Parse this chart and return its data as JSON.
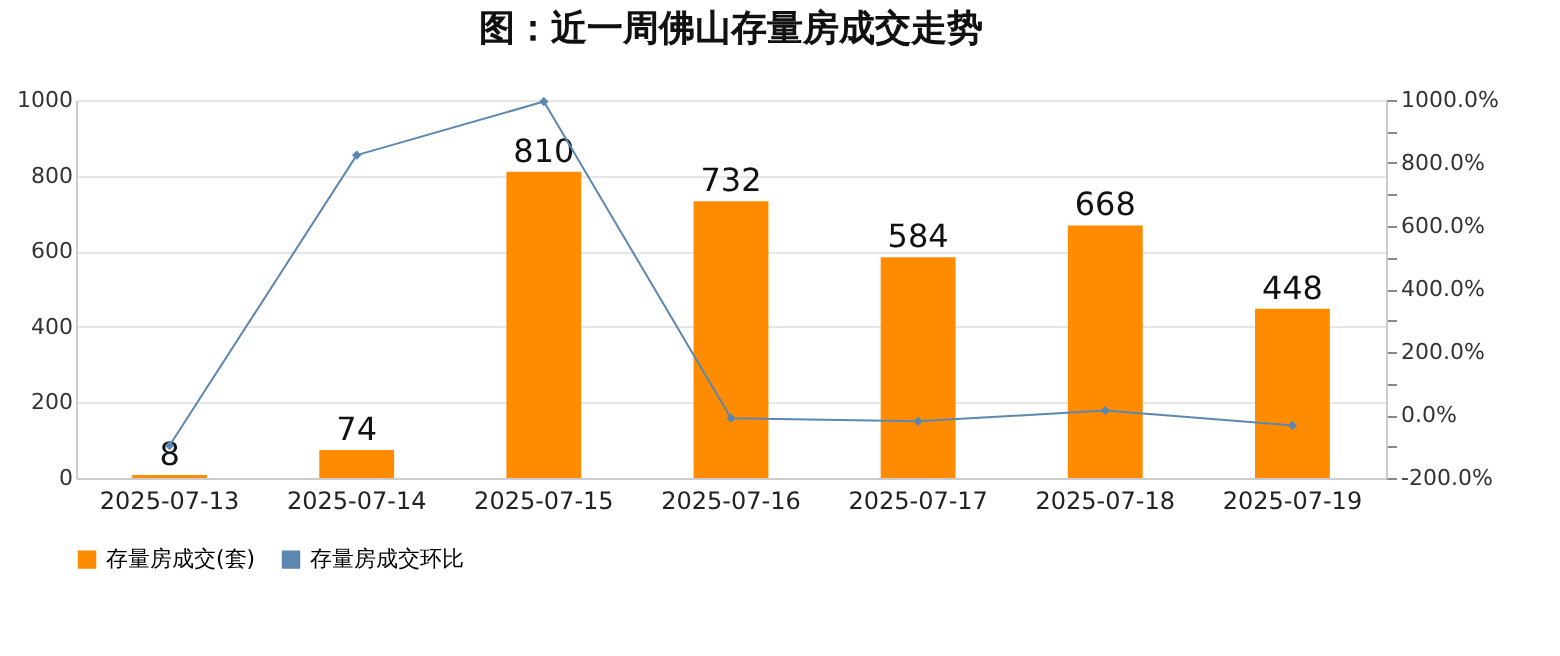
{
  "chart_data": {
    "type": "bar",
    "title": "图：近一周佛山存量房成交走势",
    "categories": [
      "2025-07-13",
      "2025-07-14",
      "2025-07-15",
      "2025-07-16",
      "2025-07-17",
      "2025-07-18",
      "2025-07-19"
    ],
    "series": [
      {
        "name": "存量房成交(套)",
        "color": "#ff8c00",
        "values": [
          8,
          74,
          810,
          732,
          584,
          668,
          448
        ],
        "value_labels": [
          "8",
          "74",
          "810",
          "732",
          "584",
          "668",
          "448"
        ]
      },
      {
        "name": "存量房成交环比",
        "type": "line",
        "axis": "y2",
        "color": "#5b87b0",
        "marker": "diamond",
        "values": [
          -97,
          825,
          995,
          -10,
          -20,
          14,
          -33
        ]
      }
    ],
    "ylim": [
      0,
      1000
    ],
    "yticks": [
      0,
      200,
      400,
      600,
      800,
      1000
    ],
    "y2lim": [
      -200,
      1000
    ],
    "y2ticks": [
      {
        "value": -200,
        "label": "-200.0%"
      },
      {
        "value": -100,
        "label": null
      },
      {
        "value": 0,
        "label": "0.0%"
      },
      {
        "value": 100,
        "label": null
      },
      {
        "value": 200,
        "label": "200.0%"
      },
      {
        "value": 300,
        "label": null
      },
      {
        "value": 400,
        "label": "400.0%"
      },
      {
        "value": 500,
        "label": null
      },
      {
        "value": 600,
        "label": "600.0%"
      },
      {
        "value": 700,
        "label": null
      },
      {
        "value": 800,
        "label": "800.0%"
      },
      {
        "value": 900,
        "label": null
      },
      {
        "value": 1000,
        "label": "1000.0%"
      }
    ],
    "grid": "y",
    "legend": "bottom"
  }
}
